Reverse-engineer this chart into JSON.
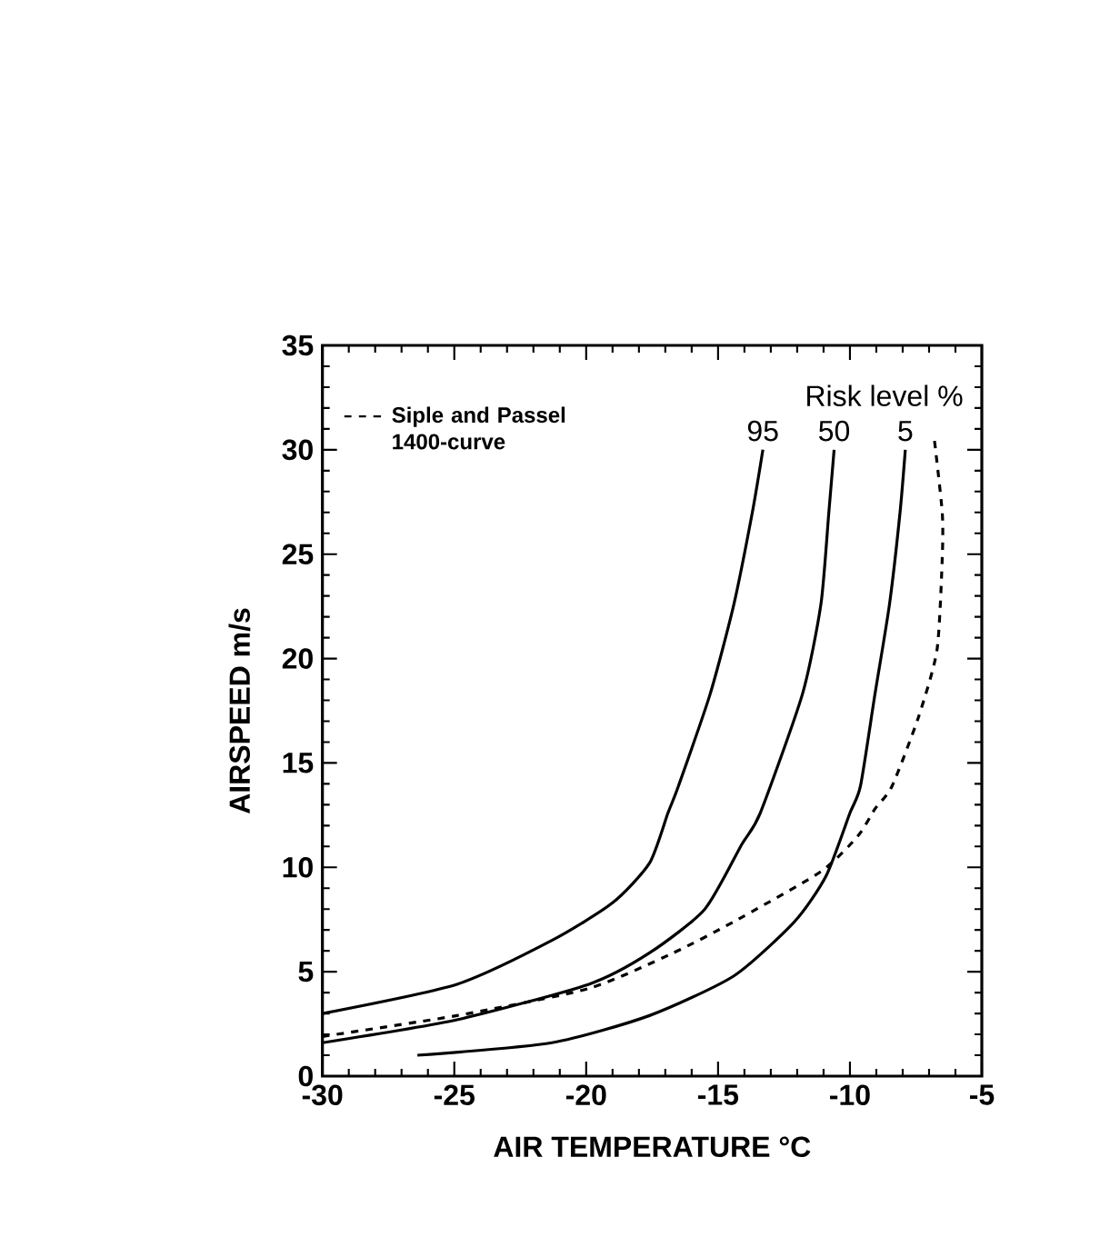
{
  "chart_data": {
    "type": "line",
    "xlabel": "AIR TEMPERATURE   °C",
    "ylabel": "AIRSPEED m/s",
    "xlim": [
      -30,
      -5
    ],
    "xticks": [
      -30,
      -25,
      -20,
      -15,
      -10,
      -5
    ],
    "ylim": [
      0,
      35
    ],
    "yticks": [
      0,
      5,
      10,
      15,
      20,
      25,
      30,
      35
    ],
    "grid": false,
    "legend": "top left",
    "marker": "none",
    "annotations": [
      "Risk level %"
    ],
    "series": [
      {
        "name": "95",
        "color": "#000000",
        "line_style": "solid",
        "x": [
          -30,
          -24.9,
          -21.3,
          -19.0,
          -17.6,
          -16.9,
          -16.5,
          -15.3,
          -14.4,
          -13.7,
          -13.3
        ],
        "values": [
          3,
          4.4,
          6.5,
          8.3,
          10.2,
          12.6,
          13.9,
          18.3,
          22.6,
          27,
          30
        ]
      },
      {
        "name": "50",
        "color": "#000000",
        "line_style": "solid",
        "x": [
          -30,
          -24.9,
          -19.9,
          -17.6,
          -15.5,
          -14.1,
          -13.4,
          -11.8,
          -11.1,
          -10.8,
          -10.6
        ],
        "values": [
          1.6,
          2.7,
          4.4,
          5.9,
          8.0,
          11.1,
          12.6,
          18.3,
          22.6,
          27,
          30
        ]
      },
      {
        "name": "5",
        "color": "#000000",
        "line_style": "solid",
        "x": [
          -26.4,
          -21.3,
          -17.6,
          -14.4,
          -12.1,
          -10.9,
          -10.0,
          -9.6,
          -9.05,
          -8.5,
          -8.1,
          -7.9
        ],
        "values": [
          1,
          1.6,
          2.9,
          4.8,
          7.4,
          9.6,
          12.6,
          13.9,
          18.3,
          22.6,
          27,
          30
        ]
      },
      {
        "name": "Siple and Passel 1400-curve",
        "color": "#000000",
        "line_style": "dashed",
        "x": [
          -30,
          -24.9,
          -19.9,
          -16.7,
          -14.4,
          -11.1,
          -9.7,
          -9.05,
          -8.4,
          -7.4,
          -6.7,
          -6.5,
          -6.5,
          -6.8
        ],
        "values": [
          1.9,
          2.9,
          4.2,
          5.9,
          7.4,
          9.8,
          11.5,
          12.8,
          13.9,
          17.2,
          20.4,
          24.8,
          27,
          30.5
        ]
      }
    ]
  }
}
